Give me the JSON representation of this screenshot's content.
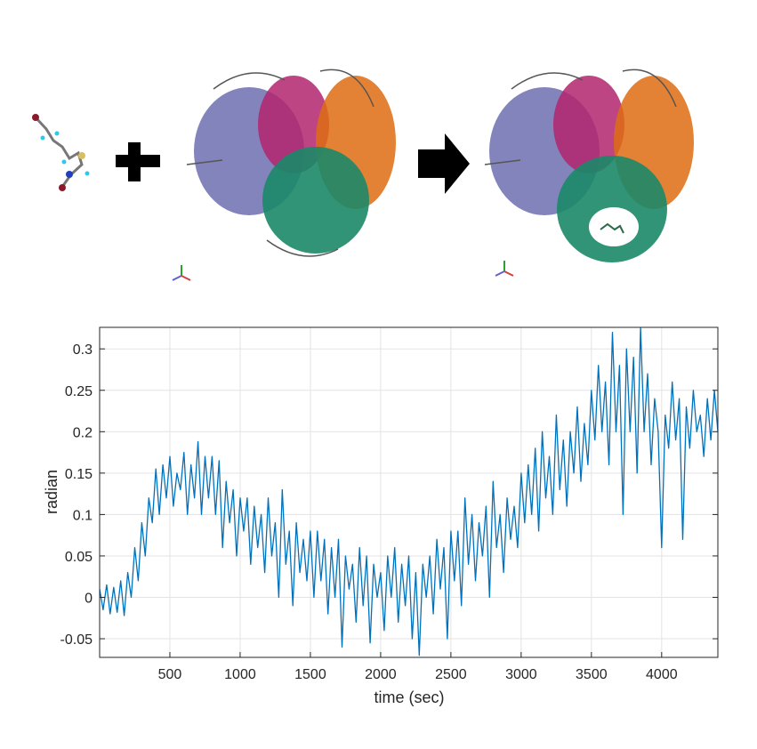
{
  "illustration": {
    "ligand": "small-molecule-ball-and-stick",
    "plus": "plus-icon",
    "protein": "protein-ribbon-structure",
    "arrow": "arrow-right-icon",
    "complex": "protein-ligand-complex",
    "colors": {
      "purple": "#6e6fb0",
      "magenta": "#b3256e",
      "green": "#1b8868",
      "orange": "#de6c12"
    }
  },
  "chart_data": {
    "type": "line",
    "title": "",
    "xlabel": "time (sec)",
    "ylabel": "radian",
    "xlim": [
      0,
      4400
    ],
    "ylim": [
      -0.0725,
      0.326
    ],
    "grid": true,
    "line_color": "#0072bd",
    "xticks": [
      500,
      1000,
      1500,
      2000,
      2500,
      3000,
      3500,
      4000
    ],
    "xtick_labels": [
      "500",
      "1000",
      "1500",
      "2000",
      "2500",
      "3000",
      "3500",
      "4000"
    ],
    "yticks": [
      -0.05,
      0,
      0.05,
      0.1,
      0.15,
      0.2,
      0.25,
      0.3
    ],
    "ytick_labels": [
      "-0.05",
      "0",
      "0.05",
      "0.1",
      "0.15",
      "0.2",
      "0.25",
      "0.3"
    ],
    "x_start": 0,
    "x_step": 25,
    "y": [
      0.01,
      -0.015,
      0.015,
      -0.02,
      0.012,
      -0.018,
      0.02,
      -0.022,
      0.03,
      0.0,
      0.06,
      0.02,
      0.09,
      0.05,
      0.12,
      0.09,
      0.155,
      0.1,
      0.16,
      0.12,
      0.17,
      0.11,
      0.15,
      0.13,
      0.175,
      0.1,
      0.16,
      0.12,
      0.188,
      0.1,
      0.17,
      0.12,
      0.17,
      0.1,
      0.165,
      0.06,
      0.14,
      0.09,
      0.13,
      0.05,
      0.12,
      0.08,
      0.12,
      0.04,
      0.11,
      0.06,
      0.1,
      0.03,
      0.12,
      0.05,
      0.09,
      0.0,
      0.13,
      0.04,
      0.08,
      -0.01,
      0.09,
      0.03,
      0.07,
      0.02,
      0.08,
      0.0,
      0.08,
      0.02,
      0.07,
      -0.02,
      0.06,
      0.0,
      0.07,
      -0.06,
      0.05,
      0.01,
      0.04,
      -0.03,
      0.06,
      -0.01,
      0.05,
      -0.055,
      0.04,
      0.0,
      0.03,
      -0.04,
      0.05,
      0.0,
      0.06,
      -0.03,
      0.04,
      -0.01,
      0.05,
      -0.05,
      0.03,
      -0.07,
      0.04,
      0.0,
      0.05,
      -0.02,
      0.07,
      0.01,
      0.06,
      -0.05,
      0.08,
      0.02,
      0.08,
      -0.01,
      0.12,
      0.04,
      0.1,
      0.02,
      0.09,
      0.05,
      0.11,
      0.0,
      0.14,
      0.06,
      0.1,
      0.03,
      0.12,
      0.07,
      0.11,
      0.06,
      0.15,
      0.09,
      0.16,
      0.1,
      0.18,
      0.08,
      0.2,
      0.12,
      0.17,
      0.1,
      0.22,
      0.13,
      0.19,
      0.11,
      0.2,
      0.15,
      0.23,
      0.14,
      0.21,
      0.16,
      0.25,
      0.19,
      0.28,
      0.2,
      0.26,
      0.16,
      0.32,
      0.2,
      0.28,
      0.1,
      0.3,
      0.2,
      0.29,
      0.15,
      0.326,
      0.2,
      0.27,
      0.16,
      0.24,
      0.2,
      0.06,
      0.22,
      0.18,
      0.26,
      0.19,
      0.24,
      0.07,
      0.23,
      0.18,
      0.25,
      0.2,
      0.22,
      0.17,
      0.24,
      0.19,
      0.25,
      0.2
    ]
  }
}
